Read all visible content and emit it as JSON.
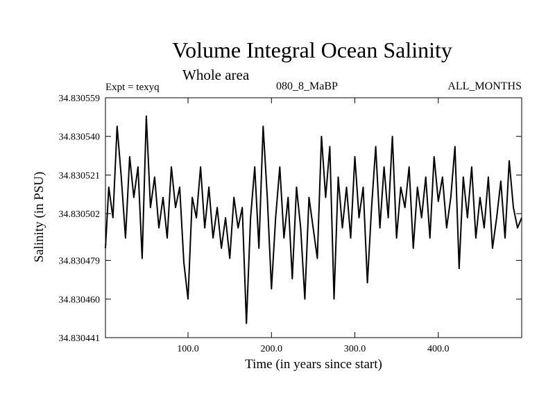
{
  "chart_data": {
    "type": "line",
    "title": "Volume Integral Ocean Salinity",
    "subtitle": "Whole area",
    "annotations": {
      "experiment": "Expt = texyq",
      "run": "080_8_MaBP",
      "months": "ALL_MONTHS"
    },
    "xlabel": "Time (in years since start)",
    "ylabel": "Salinity (in PSU)",
    "xlim": [
      1,
      500
    ],
    "ylim": [
      34.830441,
      34.830559
    ],
    "x_ticks": [
      100,
      200,
      300,
      400
    ],
    "x_tick_labels": [
      "100.0",
      "200.0",
      "300.0",
      "400.0"
    ],
    "y_ticks": [
      34.830441,
      34.83046,
      34.830479,
      34.830502,
      34.830521,
      34.83054,
      34.830559
    ],
    "y_tick_labels": [
      "34.830441",
      "34.830460",
      "34.830479",
      "34.830502",
      "34.830521",
      "34.830540",
      "34.830559"
    ],
    "grid": false,
    "series": [
      {
        "color": "#000000",
        "x": [
          1,
          5,
          10,
          15,
          20,
          25,
          30,
          35,
          40,
          45,
          50,
          55,
          60,
          65,
          70,
          75,
          80,
          85,
          90,
          95,
          100,
          105,
          110,
          115,
          120,
          125,
          130,
          135,
          140,
          145,
          150,
          155,
          160,
          165,
          170,
          175,
          180,
          185,
          190,
          195,
          200,
          205,
          210,
          215,
          220,
          225,
          230,
          235,
          240,
          245,
          250,
          255,
          260,
          265,
          270,
          275,
          280,
          285,
          290,
          295,
          300,
          305,
          310,
          315,
          320,
          325,
          330,
          335,
          340,
          345,
          350,
          355,
          360,
          365,
          370,
          375,
          380,
          385,
          390,
          395,
          400,
          405,
          410,
          415,
          420,
          425,
          430,
          435,
          440,
          445,
          450,
          455,
          460,
          465,
          470,
          475,
          480,
          485,
          490,
          495,
          500
        ],
        "values": [
          34.830485,
          34.830515,
          34.8305,
          34.830545,
          34.83052,
          34.83049,
          34.83053,
          34.83051,
          34.830525,
          34.83048,
          34.83055,
          34.830505,
          34.83052,
          34.830495,
          34.83051,
          34.83049,
          34.830525,
          34.830505,
          34.830515,
          34.830478,
          34.83046,
          34.83051,
          34.8305,
          34.830525,
          34.830495,
          34.830515,
          34.83049,
          34.830505,
          34.830485,
          34.8305,
          34.83048,
          34.83051,
          34.830495,
          34.830505,
          34.830448,
          34.8305,
          34.830525,
          34.830485,
          34.830545,
          34.83051,
          34.830465,
          34.8305,
          34.830525,
          34.83049,
          34.83051,
          34.83047,
          34.830515,
          34.830495,
          34.83046,
          34.83051,
          34.830495,
          34.83048,
          34.83054,
          34.83051,
          34.830535,
          34.83046,
          34.83052,
          34.830495,
          34.830515,
          34.83049,
          34.83053,
          34.8305,
          34.830515,
          34.830468,
          34.830505,
          34.830535,
          34.830495,
          34.830525,
          34.8305,
          34.83054,
          34.83049,
          34.830515,
          34.830505,
          34.830525,
          34.830485,
          34.830515,
          34.8305,
          34.83052,
          34.83049,
          34.83053,
          34.830508,
          34.83052,
          34.830495,
          34.83051,
          34.830535,
          34.830475,
          34.83052,
          34.8305,
          34.830525,
          34.83049,
          34.83051,
          34.830495,
          34.83052,
          34.830485,
          34.8305,
          34.830518,
          34.83049,
          34.830528,
          34.830505,
          34.830495,
          34.8305
        ]
      }
    ]
  }
}
